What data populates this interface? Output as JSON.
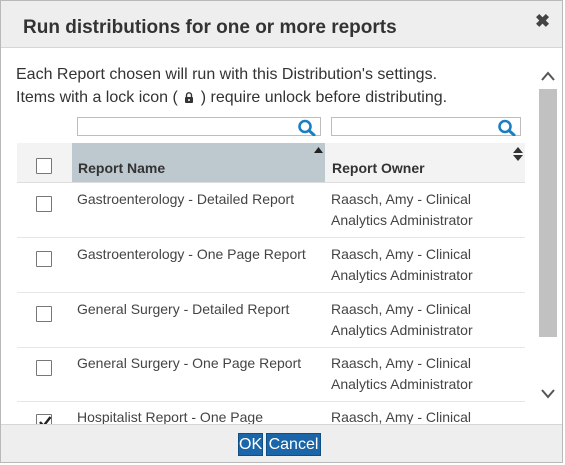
{
  "dialog": {
    "title": "Run distributions for one or more reports",
    "close_symbol": "✖",
    "instruction_line1": "Each Report chosen will run with this Distribution's settings.",
    "instruction_line2_before": "Items with a lock icon (",
    "instruction_line2_after": ") require unlock before distributing."
  },
  "filters": {
    "name_value": "",
    "owner_value": ""
  },
  "table": {
    "columns": {
      "name": "Report Name",
      "owner": "Report Owner"
    },
    "rows": [
      {
        "name": "Gastroenterology - Detailed Report",
        "owner": "Raasch, Amy - Clinical Analytics Administrator",
        "checked": false
      },
      {
        "name": "Gastroenterology - One Page Report",
        "owner": "Raasch, Amy - Clinical Analytics Administrator",
        "checked": false
      },
      {
        "name": "General Surgery - Detailed Report",
        "owner": "Raasch, Amy - Clinical Analytics Administrator",
        "checked": false
      },
      {
        "name": "General Surgery - One Page Report",
        "owner": "Raasch, Amy - Clinical Analytics Administrator",
        "checked": false
      },
      {
        "name": "Hospitalist Report - One Page",
        "owner": "Raasch, Amy - Clinical",
        "checked": true
      }
    ]
  },
  "footer": {
    "ok_label": "OK",
    "cancel_label": "Cancel"
  },
  "colors": {
    "sorted_header": "#bec8cf",
    "button_bg": "#1a66a8",
    "search_icon": "#1a7fc1"
  },
  "icons": {
    "close": "close-icon",
    "lock": "lock-icon",
    "search": "search-icon",
    "sort": "sort-icon",
    "scroll_up": "chevron-up-icon",
    "scroll_down": "chevron-down-icon"
  }
}
